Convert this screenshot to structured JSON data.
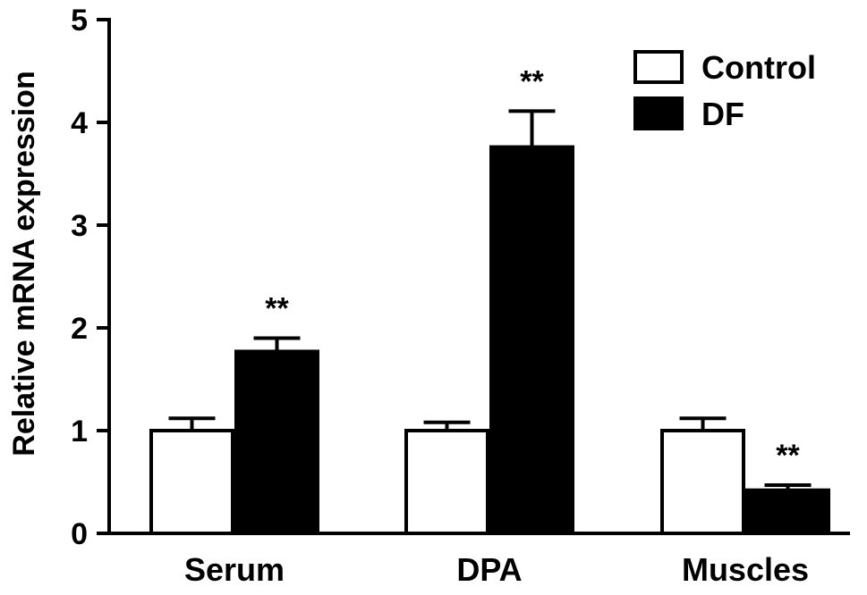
{
  "chart_data": {
    "type": "bar",
    "title": "",
    "xlabel": "",
    "ylabel": "Relative mRNA expression",
    "ylim": [
      0,
      5
    ],
    "yticks": [
      "0",
      "1",
      "2",
      "3",
      "4",
      "5"
    ],
    "categories": [
      "Serum",
      "DPA",
      "Muscles"
    ],
    "series": [
      {
        "name": "Control",
        "fill": "#ffffff",
        "stroke": "#000000",
        "values": [
          1.0,
          1.0,
          1.0
        ],
        "errors": [
          0.12,
          0.08,
          0.12
        ],
        "significance": [
          "",
          "",
          ""
        ]
      },
      {
        "name": "DF",
        "fill": "#000000",
        "stroke": "#000000",
        "values": [
          1.77,
          3.76,
          0.42
        ],
        "errors": [
          0.13,
          0.35,
          0.05
        ],
        "significance": [
          "**",
          "**",
          "**"
        ]
      }
    ],
    "legend": {
      "placement": "top-right",
      "entries": [
        "Control",
        "DF"
      ]
    },
    "grid": false
  }
}
